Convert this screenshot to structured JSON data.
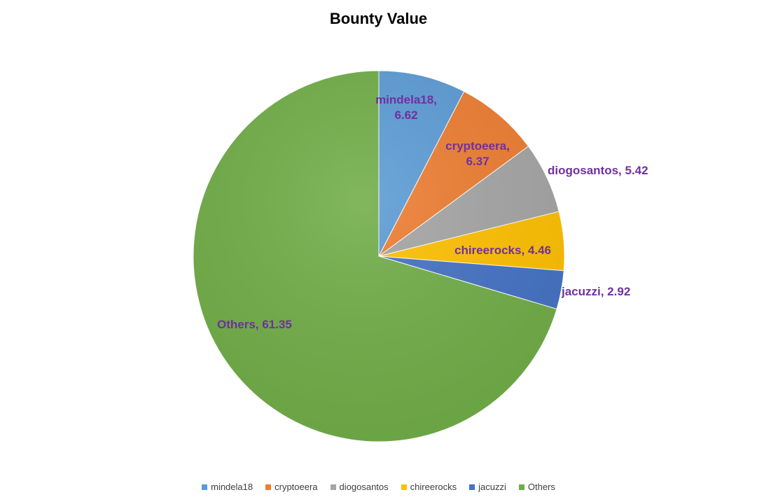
{
  "chart_data": {
    "type": "pie",
    "title": "Bounty Value",
    "legend_position": "bottom",
    "label_color": "#7030a0",
    "slices": [
      {
        "name": "mindela18",
        "value": 6.62,
        "color": "#5b9bd5",
        "label_line1": "mindela18,",
        "label_line2": "6.62"
      },
      {
        "name": "cryptoeera",
        "value": 6.37,
        "color": "#ed7d31",
        "label_line1": "cryptoeera,",
        "label_line2": "6.37"
      },
      {
        "name": "diogosantos",
        "value": 5.42,
        "color": "#a5a5a5",
        "label_line1": "diogosantos,  5.42",
        "label_line2": ""
      },
      {
        "name": "chireerocks",
        "value": 4.46,
        "color": "#ffc000",
        "label_line1": "chireerocks, 4.46",
        "label_line2": ""
      },
      {
        "name": "jacuzzi",
        "value": 2.92,
        "color": "#4472c4",
        "label_line1": "jacuzzi,  2.92",
        "label_line2": ""
      },
      {
        "name": "Others",
        "value": 61.35,
        "color": "#70ad47",
        "label_line1": "Others, 61.35",
        "label_line2": ""
      }
    ]
  }
}
